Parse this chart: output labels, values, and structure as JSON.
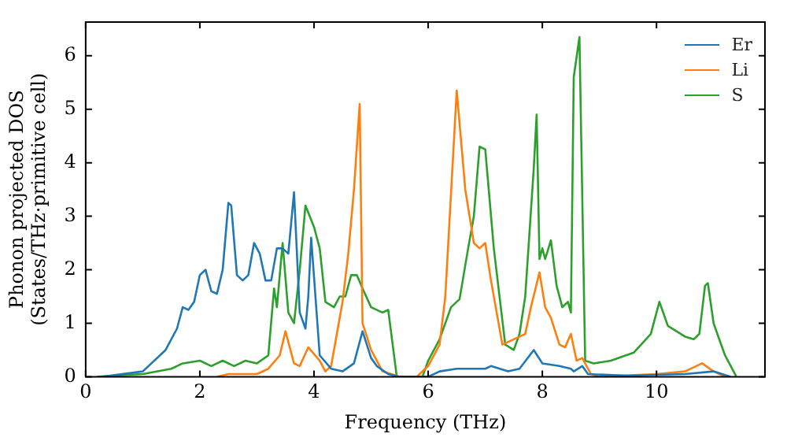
{
  "chart_data": {
    "type": "line",
    "xlabel": "Frequency (THz)",
    "ylabel": "Phonon projected DOS\n(States/THz·primitive cell)",
    "xlim": [
      0,
      11.9
    ],
    "ylim": [
      0,
      6.63
    ],
    "xticks": [
      0,
      2,
      4,
      6,
      8,
      10
    ],
    "yticks": [
      0,
      1,
      2,
      3,
      4,
      5,
      6
    ],
    "grid": false,
    "legend": "top right",
    "marker": "none",
    "line_style": "solid",
    "series": [
      {
        "name": "Er",
        "color": "#1f77b4",
        "x": [
          0.3,
          1.0,
          1.4,
          1.6,
          1.7,
          1.8,
          1.9,
          2.0,
          2.1,
          2.2,
          2.3,
          2.4,
          2.5,
          2.55,
          2.65,
          2.75,
          2.85,
          2.95,
          3.05,
          3.15,
          3.25,
          3.35,
          3.45,
          3.55,
          3.65,
          3.75,
          3.85,
          3.9,
          3.95,
          4.1,
          4.3,
          4.5,
          4.7,
          4.85,
          5.0,
          5.1,
          5.3,
          5.5,
          6.0,
          6.2,
          6.5,
          7.0,
          7.1,
          7.4,
          7.6,
          7.85,
          8.0,
          8.3,
          8.5,
          8.55,
          8.7,
          8.8,
          9.5,
          10.5,
          11.0,
          11.3
        ],
        "values": [
          0,
          0.1,
          0.5,
          0.9,
          1.3,
          1.25,
          1.4,
          1.9,
          2.0,
          1.6,
          1.55,
          2.0,
          3.25,
          3.2,
          1.9,
          1.8,
          1.9,
          2.5,
          2.3,
          1.8,
          1.8,
          2.4,
          2.4,
          2.3,
          3.45,
          1.2,
          0.9,
          1.5,
          2.6,
          0.4,
          0.15,
          0.1,
          0.25,
          0.85,
          0.35,
          0.2,
          0.05,
          0,
          0,
          0.1,
          0.15,
          0.15,
          0.2,
          0.1,
          0.15,
          0.5,
          0.25,
          0.2,
          0.15,
          0.1,
          0.2,
          0.05,
          0.02,
          0.05,
          0.1,
          0
        ]
      },
      {
        "name": "Li",
        "color": "#ff7f0e",
        "x": [
          2.3,
          2.5,
          3.0,
          3.2,
          3.4,
          3.5,
          3.65,
          3.75,
          3.9,
          4.1,
          4.2,
          4.3,
          4.4,
          4.5,
          4.6,
          4.7,
          4.8,
          4.85,
          5.0,
          5.2,
          5.5,
          5.8,
          6.0,
          6.2,
          6.3,
          6.5,
          6.65,
          6.8,
          6.9,
          7.0,
          7.1,
          7.3,
          7.5,
          7.7,
          7.8,
          7.95,
          8.05,
          8.15,
          8.3,
          8.4,
          8.5,
          8.6,
          8.7,
          8.85,
          9.0,
          10.0,
          10.5,
          10.8,
          11.0,
          11.2
        ],
        "values": [
          0,
          0.05,
          0.05,
          0.15,
          0.4,
          0.85,
          0.25,
          0.2,
          0.55,
          0.3,
          0.1,
          0.2,
          0.8,
          1.4,
          2.3,
          3.5,
          5.1,
          1.0,
          0.5,
          0.1,
          0,
          0,
          0.2,
          0.6,
          1.5,
          5.35,
          3.5,
          2.5,
          2.4,
          2.5,
          1.8,
          0.6,
          0.7,
          0.8,
          1.3,
          1.95,
          1.3,
          1.1,
          0.6,
          0.55,
          0.8,
          0.3,
          0.35,
          0.05,
          0,
          0.05,
          0.1,
          0.25,
          0.1,
          0
        ]
      },
      {
        "name": "S",
        "color": "#2ca02c",
        "x": [
          0.2,
          1.0,
          1.5,
          1.7,
          2.0,
          2.2,
          2.4,
          2.6,
          2.8,
          3.0,
          3.2,
          3.3,
          3.35,
          3.45,
          3.55,
          3.65,
          3.75,
          3.85,
          4.0,
          4.1,
          4.2,
          4.35,
          4.45,
          4.55,
          4.65,
          4.75,
          4.85,
          5.0,
          5.2,
          5.3,
          5.45,
          5.9,
          6.0,
          6.2,
          6.4,
          6.55,
          6.7,
          6.8,
          6.9,
          7.0,
          7.15,
          7.35,
          7.5,
          7.6,
          7.7,
          7.85,
          7.9,
          7.95,
          8.0,
          8.05,
          8.15,
          8.25,
          8.35,
          8.45,
          8.5,
          8.55,
          8.65,
          8.75,
          8.9,
          9.2,
          9.6,
          9.9,
          10.05,
          10.2,
          10.5,
          10.65,
          10.75,
          10.85,
          10.9,
          11.0,
          11.2,
          11.4
        ],
        "values": [
          0,
          0.05,
          0.15,
          0.25,
          0.3,
          0.2,
          0.3,
          0.2,
          0.3,
          0.25,
          0.4,
          1.65,
          1.3,
          2.5,
          1.2,
          1.0,
          2.0,
          3.2,
          2.8,
          2.4,
          1.4,
          1.3,
          1.5,
          1.5,
          1.9,
          1.9,
          1.65,
          1.3,
          1.2,
          1.25,
          0,
          0,
          0.3,
          0.7,
          1.3,
          1.45,
          2.4,
          3.0,
          4.3,
          4.25,
          2.4,
          0.6,
          0.5,
          0.8,
          1.5,
          3.9,
          4.9,
          2.2,
          2.4,
          2.2,
          2.55,
          1.7,
          1.3,
          1.4,
          1.2,
          5.6,
          6.35,
          0.3,
          0.25,
          0.3,
          0.45,
          0.8,
          1.4,
          0.95,
          0.75,
          0.7,
          0.8,
          1.7,
          1.75,
          1.0,
          0.4,
          0
        ]
      }
    ]
  }
}
